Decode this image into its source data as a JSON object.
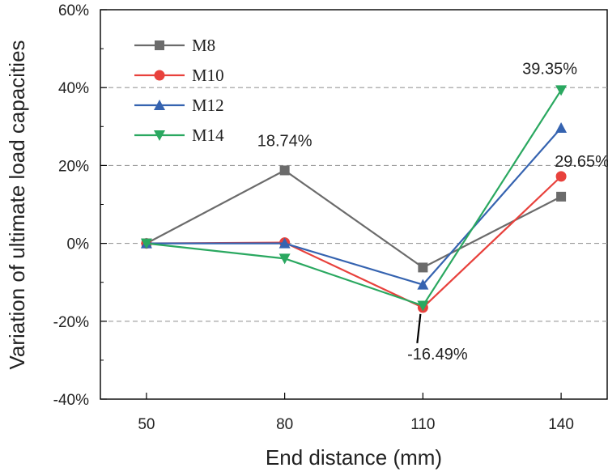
{
  "chart_data": {
    "type": "line",
    "title": "",
    "xlabel": "End distance (mm)",
    "ylabel": "Variation of ultimate load capacities",
    "categories": [
      "50",
      "80",
      "110",
      "140"
    ],
    "x": [
      50,
      80,
      110,
      140
    ],
    "xlim": [
      40,
      150
    ],
    "ylim": [
      -40,
      60
    ],
    "yticks": [
      -40,
      -20,
      0,
      20,
      40,
      60
    ],
    "ytick_labels": [
      "-40%",
      "-20%",
      "0%",
      "20%",
      "40%",
      "60%"
    ],
    "grid": "dashed horizontal at -20, 20, 40",
    "legend_position": "top-left",
    "series": [
      {
        "name": "M8",
        "values": [
          0,
          18.74,
          -6.2,
          12.0
        ],
        "color": "#6b6b6b",
        "marker": "square"
      },
      {
        "name": "M10",
        "values": [
          0,
          0.2,
          -16.49,
          17.2
        ],
        "color": "#e8413c",
        "marker": "circle"
      },
      {
        "name": "M12",
        "values": [
          0,
          0.0,
          -10.6,
          29.65
        ],
        "color": "#3563b0",
        "marker": "triangle-up"
      },
      {
        "name": "M14",
        "values": [
          0,
          -3.9,
          -16.0,
          39.35
        ],
        "color": "#2aa860",
        "marker": "triangle-down"
      }
    ],
    "annotations": [
      {
        "text": "18.74%",
        "series": "M8",
        "x": 80
      },
      {
        "text": "-16.49%",
        "series": "M10",
        "x": 110
      },
      {
        "text": "29.65%",
        "series": "M12",
        "x": 140
      },
      {
        "text": "39.35%",
        "series": "M14",
        "x": 140
      }
    ]
  }
}
